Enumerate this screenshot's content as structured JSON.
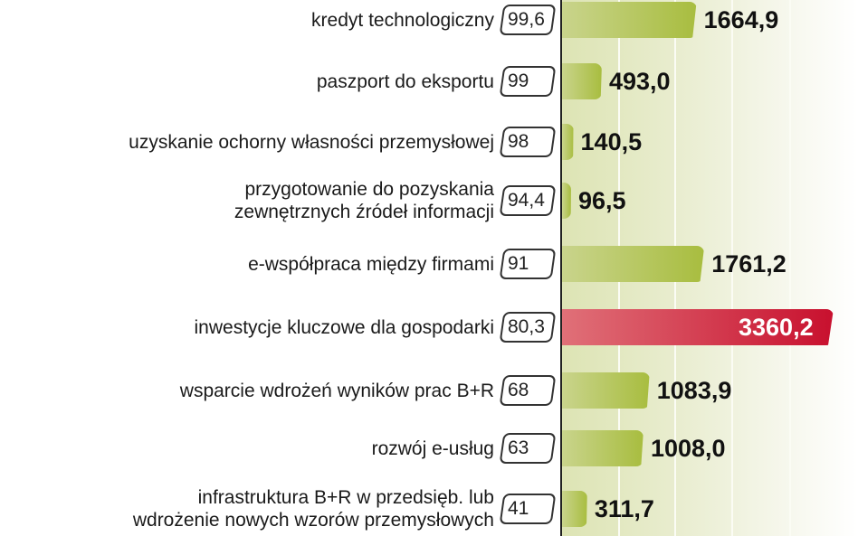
{
  "chart_data": {
    "type": "bar",
    "orientation": "horizontal",
    "categories": [
      [
        "kredyt technologiczny"
      ],
      [
        "paszport do eksportu"
      ],
      [
        "uzyskanie ochorny własności przemysłowej"
      ],
      [
        "przygotowanie do pozyskania",
        "zewnętrznych źródeł informacji"
      ],
      [
        "e-współpraca między firmami"
      ],
      [
        "inwestycje kluczowe dla gospodarki"
      ],
      [
        "wsparcie wdrożeń wyników prac B+R"
      ],
      [
        "rozwój e-usług"
      ],
      [
        "infrastruktura B+R w przedsięb. lub",
        "wdrożenie nowych wzorów przemysłowych"
      ]
    ],
    "box_values": [
      "99,6",
      "99",
      "98",
      "94,4",
      "91",
      "80,3",
      "68",
      "63",
      "41"
    ],
    "values": [
      1664.9,
      493.0,
      140.5,
      96.5,
      1761.2,
      3360.2,
      1083.9,
      1008.0,
      311.7
    ],
    "value_labels": [
      "1664,9",
      "493,0",
      "140,5",
      "96,5",
      "1761,2",
      "3360,2",
      "1083,9",
      "1008,0",
      "311,7"
    ],
    "highlight_index": 5,
    "colors": {
      "bar": "#a8bd3f",
      "highlight": "#c8102e",
      "background": "#dde4b4"
    },
    "grid": true
  }
}
